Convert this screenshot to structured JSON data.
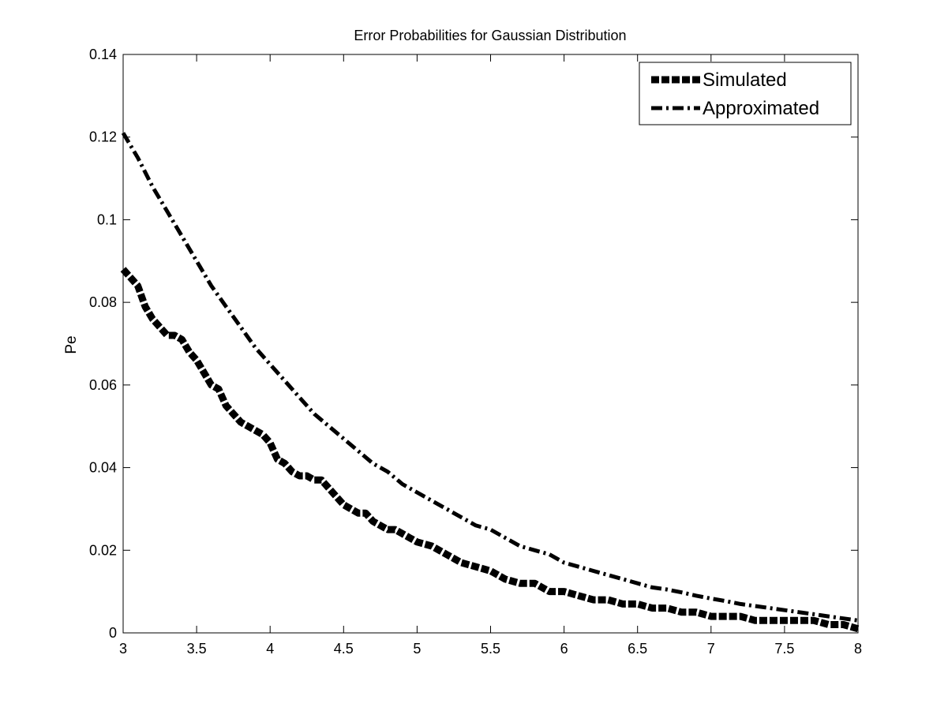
{
  "chart_data": {
    "type": "line",
    "title": "Error Probabilities for Gaussian Distribution",
    "xlabel": "",
    "ylabel": "Pe",
    "xlim": [
      3,
      8
    ],
    "ylim": [
      0,
      0.14
    ],
    "grid": false,
    "legend_position": "top-right",
    "x_ticks": [
      3,
      3.5,
      4,
      4.5,
      5,
      5.5,
      6,
      6.5,
      7,
      7.5,
      8
    ],
    "x_tick_labels": [
      "3",
      "3.5",
      "4",
      "4.5",
      "5",
      "5.5",
      "6",
      "6.5",
      "7",
      "7.5",
      "8"
    ],
    "y_ticks": [
      0,
      0.02,
      0.04,
      0.06,
      0.08,
      0.1,
      0.12,
      0.14
    ],
    "y_tick_labels": [
      "0",
      "0.02",
      "0.04",
      "0.06",
      "0.08",
      "0.1",
      "0.12",
      "0.14"
    ],
    "series": [
      {
        "name": "Simulated",
        "style": "dashed-thick",
        "color": "#000000",
        "x": [
          3.0,
          3.05,
          3.1,
          3.15,
          3.2,
          3.25,
          3.3,
          3.35,
          3.4,
          3.45,
          3.5,
          3.55,
          3.6,
          3.65,
          3.7,
          3.75,
          3.8,
          3.85,
          3.9,
          3.95,
          4.0,
          4.05,
          4.1,
          4.15,
          4.2,
          4.25,
          4.3,
          4.35,
          4.4,
          4.45,
          4.5,
          4.55,
          4.6,
          4.65,
          4.7,
          4.75,
          4.8,
          4.85,
          4.9,
          4.95,
          5.0,
          5.1,
          5.2,
          5.3,
          5.4,
          5.5,
          5.6,
          5.7,
          5.8,
          5.9,
          6.0,
          6.1,
          6.2,
          6.3,
          6.4,
          6.5,
          6.6,
          6.7,
          6.8,
          6.9,
          7.0,
          7.1,
          7.2,
          7.3,
          7.4,
          7.5,
          7.6,
          7.7,
          7.8,
          7.9,
          8.0
        ],
        "y": [
          0.088,
          0.086,
          0.084,
          0.079,
          0.076,
          0.074,
          0.072,
          0.072,
          0.071,
          0.068,
          0.066,
          0.063,
          0.06,
          0.059,
          0.055,
          0.053,
          0.051,
          0.05,
          0.049,
          0.048,
          0.046,
          0.042,
          0.041,
          0.039,
          0.038,
          0.038,
          0.037,
          0.037,
          0.035,
          0.033,
          0.031,
          0.03,
          0.029,
          0.029,
          0.027,
          0.026,
          0.025,
          0.025,
          0.024,
          0.023,
          0.022,
          0.021,
          0.019,
          0.017,
          0.016,
          0.015,
          0.013,
          0.012,
          0.012,
          0.01,
          0.01,
          0.009,
          0.008,
          0.008,
          0.007,
          0.007,
          0.006,
          0.006,
          0.005,
          0.005,
          0.004,
          0.004,
          0.004,
          0.003,
          0.003,
          0.003,
          0.003,
          0.003,
          0.002,
          0.002,
          0.001
        ]
      },
      {
        "name": "Approximated",
        "style": "dash-dot",
        "color": "#000000",
        "x": [
          3.0,
          3.1,
          3.2,
          3.3,
          3.4,
          3.5,
          3.6,
          3.7,
          3.8,
          3.9,
          4.0,
          4.1,
          4.2,
          4.3,
          4.4,
          4.5,
          4.6,
          4.7,
          4.8,
          4.9,
          5.0,
          5.1,
          5.2,
          5.3,
          5.4,
          5.5,
          5.6,
          5.7,
          5.8,
          5.9,
          6.0,
          6.1,
          6.2,
          6.3,
          6.4,
          6.5,
          6.6,
          6.7,
          6.8,
          6.9,
          7.0,
          7.1,
          7.2,
          7.3,
          7.4,
          7.5,
          7.6,
          7.7,
          7.8,
          7.9,
          8.0
        ],
        "y": [
          0.121,
          0.115,
          0.108,
          0.102,
          0.096,
          0.09,
          0.084,
          0.079,
          0.074,
          0.069,
          0.065,
          0.061,
          0.057,
          0.053,
          0.05,
          0.047,
          0.044,
          0.041,
          0.039,
          0.036,
          0.034,
          0.032,
          0.03,
          0.028,
          0.026,
          0.025,
          0.023,
          0.021,
          0.02,
          0.019,
          0.017,
          0.016,
          0.015,
          0.014,
          0.013,
          0.012,
          0.011,
          0.0105,
          0.0098,
          0.009,
          0.0083,
          0.0077,
          0.007,
          0.0065,
          0.006,
          0.0055,
          0.005,
          0.0045,
          0.004,
          0.0035,
          0.003
        ]
      }
    ]
  }
}
